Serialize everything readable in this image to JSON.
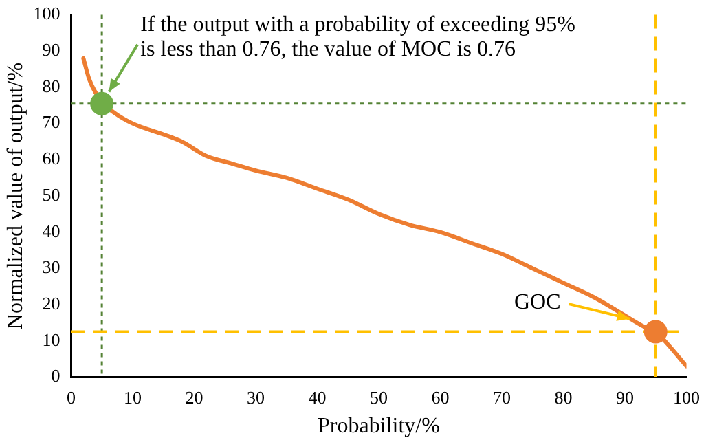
{
  "chart_data": {
    "type": "line",
    "xlabel": "Probability/%",
    "ylabel": "Normalized value of output/%",
    "xlim": [
      0,
      100
    ],
    "xticks": [
      0,
      10,
      20,
      30,
      40,
      50,
      60,
      70,
      80,
      90,
      100
    ],
    "ylim": [
      0,
      100
    ],
    "yticks": [
      0,
      10,
      20,
      30,
      40,
      50,
      60,
      70,
      80,
      90,
      100
    ],
    "grid": false,
    "legend": false,
    "series": [
      {
        "color": "#ed7d31",
        "marker": "none",
        "x": [
          2,
          3,
          5,
          7,
          10,
          15,
          18,
          22,
          26,
          30,
          35,
          40,
          45,
          50,
          55,
          60,
          65,
          70,
          75,
          80,
          85,
          90,
          93,
          95,
          97,
          99,
          100
        ],
        "values": [
          88,
          82,
          76,
          73,
          70,
          67,
          65,
          61,
          59,
          57,
          55,
          52,
          49,
          45,
          42,
          40,
          37,
          34,
          30,
          26,
          22,
          17,
          14,
          12.5,
          9,
          5,
          3
        ]
      },
      {
        "type": "scatter",
        "color": "#70ad47",
        "marker": "circle",
        "x": [
          5
        ],
        "values": [
          75.5
        ]
      },
      {
        "type": "scatter",
        "color": "#ed7d31",
        "marker": "circle",
        "x": [
          95
        ],
        "values": [
          12.5
        ]
      }
    ],
    "ref_lines": [
      {
        "axis": "x",
        "value": 5,
        "color": "#548235",
        "line_style": "dotted"
      },
      {
        "axis": "y",
        "value": 75.5,
        "color": "#548235",
        "line_style": "dotted"
      },
      {
        "axis": "y",
        "value": 12.5,
        "color": "#ffc000",
        "line_style": "dashed"
      },
      {
        "axis": "x",
        "value": 95,
        "color": "#ffc000",
        "line_style": "dashed"
      }
    ],
    "annotations": [
      {
        "text": "If the output with a probability of exceeding 95%\nis less than 0.76, the value of MOC is 0.76",
        "x": 5,
        "y": 75.5
      },
      {
        "text": "GOC",
        "x": 91,
        "y": 16
      }
    ]
  }
}
